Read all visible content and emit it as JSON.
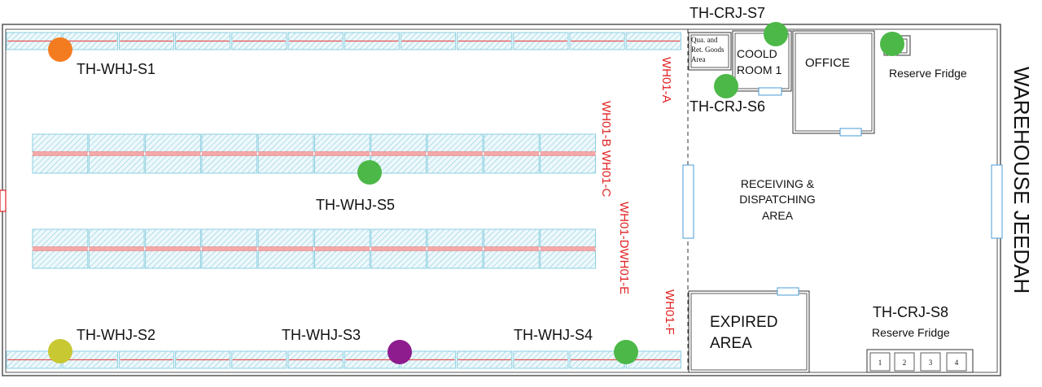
{
  "building": {
    "title": "WAREHOUSE JEEDAH"
  },
  "rooms": {
    "qua_area": [
      "Qua. and",
      "Ret. Goods",
      "Area"
    ],
    "cold_room": [
      "COOLD",
      "ROOM 1"
    ],
    "office": "OFFICE",
    "receiving": [
      "RECEIVING &",
      "DISPATCHING",
      "AREA"
    ],
    "expired": [
      "EXPIRED",
      "AREA"
    ],
    "reserve_fridge_top": "Reserve Fridge",
    "reserve_fridge_bottom": "Reserve Fridge",
    "fridge_cells": [
      "1",
      "2",
      "3",
      "4"
    ]
  },
  "racks": {
    "a": "WH01-A",
    "bc": "WH01-B WH01-C",
    "de": "WH01-DWH01-E",
    "f": "WH01-F"
  },
  "sensors": [
    {
      "id": "s1",
      "label": "TH-WHJ-S1",
      "color": "#f47c20"
    },
    {
      "id": "s2",
      "label": "TH-WHJ-S2",
      "color": "#c8c832"
    },
    {
      "id": "s3",
      "label": "TH-WHJ-S3",
      "color": "#8e1c8e"
    },
    {
      "id": "s4",
      "label": "TH-WHJ-S4",
      "color": "#4cb848"
    },
    {
      "id": "s5",
      "label": "TH-WHJ-S5",
      "color": "#4cb848"
    },
    {
      "id": "s6",
      "label": "TH-CRJ-S6",
      "color": "#4cb848"
    },
    {
      "id": "s7",
      "label": "TH-CRJ-S7",
      "color": "#4cb848"
    },
    {
      "id": "s8",
      "label": "TH-CRJ-S8",
      "color": null
    },
    {
      "id": "fridge",
      "label": "",
      "color": "#4cb848"
    }
  ]
}
